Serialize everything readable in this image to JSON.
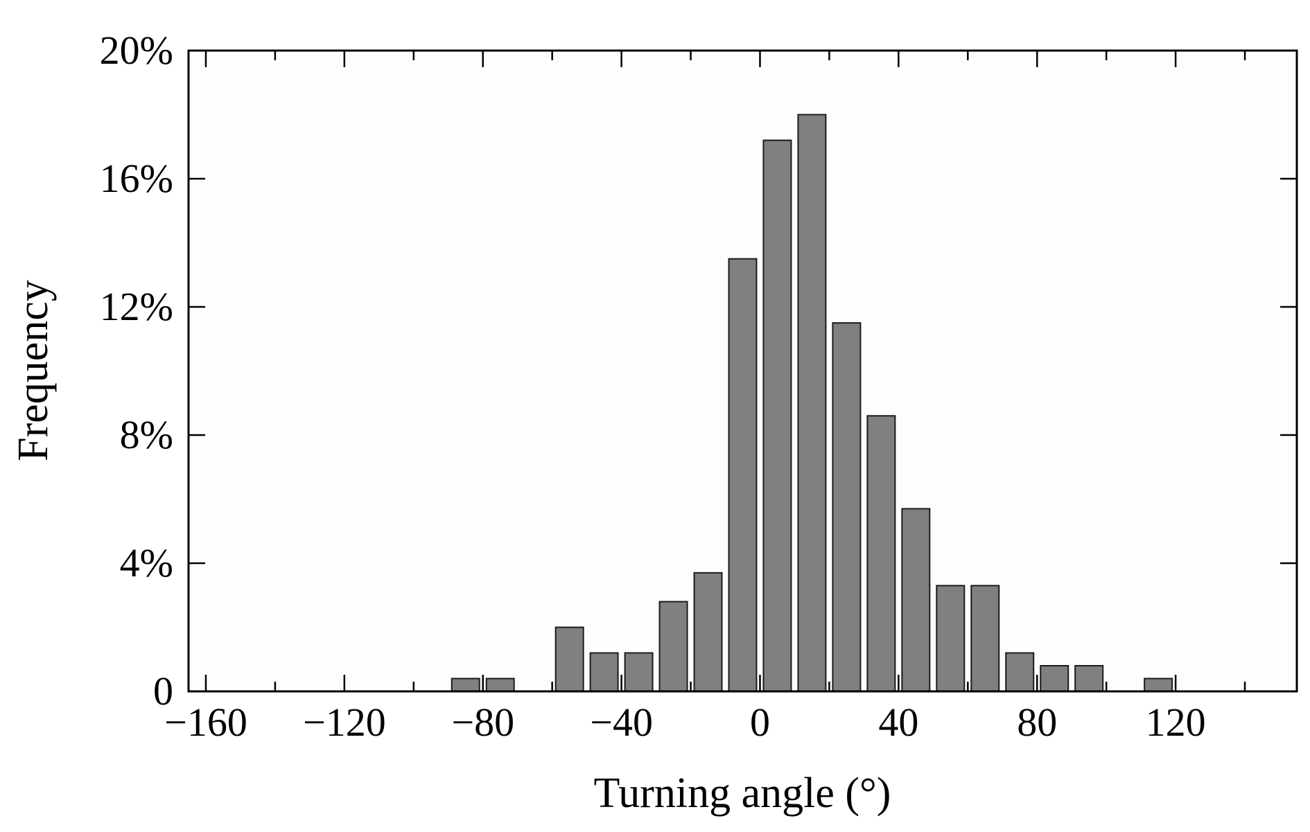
{
  "chart_data": {
    "type": "bar",
    "title": "",
    "xlabel": "Turning angle (°)",
    "ylabel": "Frequency",
    "x_unit": "degrees",
    "bin_width": 10,
    "xlim": [
      -165,
      155
    ],
    "ylim": [
      0,
      20
    ],
    "y_unit": "percent",
    "xticks": [
      -160,
      -120,
      -80,
      -40,
      0,
      40,
      80,
      120
    ],
    "xtick_labels": [
      "−160",
      "−120",
      "−80",
      "−40",
      "0",
      "40",
      "80",
      "120"
    ],
    "yticks": [
      0,
      4,
      8,
      12,
      16,
      20
    ],
    "ytick_labels": [
      "0",
      "4%",
      "8%",
      "12%",
      "16%",
      "20%"
    ],
    "x_minor_ticks": [
      -140,
      -100,
      -60,
      -20,
      20,
      60,
      100,
      140
    ],
    "grid": false,
    "legend": "none",
    "bar_color": "#808080",
    "bar_edge_color": "#1a1a1a",
    "bins": [
      -90,
      -80,
      -60,
      -50,
      -40,
      -30,
      -20,
      -10,
      0,
      10,
      20,
      30,
      40,
      50,
      60,
      70,
      80,
      90,
      110
    ],
    "values": [
      0.4,
      0.4,
      2.0,
      1.2,
      1.2,
      2.8,
      3.7,
      13.5,
      17.2,
      18.0,
      11.5,
      8.6,
      5.7,
      3.3,
      3.3,
      1.2,
      0.8,
      0.8,
      0.4
    ]
  }
}
